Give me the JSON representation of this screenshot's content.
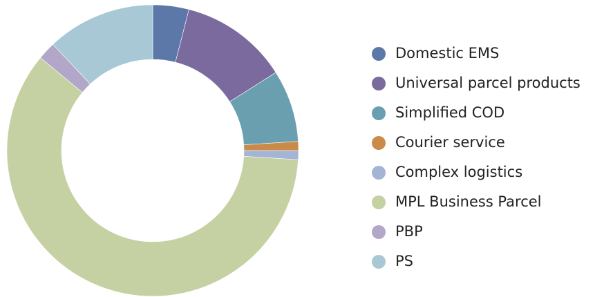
{
  "chart_data": {
    "type": "donut",
    "categories": [
      "Domestic EMS",
      "Universal parcel products",
      "Simplified COD",
      "Courier service",
      "Complex logistics",
      "MPL Business Parcel",
      "PBP",
      "PS"
    ],
    "values": [
      4,
      12,
      8,
      1,
      1,
      60,
      2,
      12
    ],
    "colors": [
      "#5b78a8",
      "#7a6a9e",
      "#6a9fb0",
      "#c98a4a",
      "#a4b4d4",
      "#c5d1a3",
      "#b3a7c9",
      "#a8c8d6"
    ],
    "legend": "right"
  }
}
